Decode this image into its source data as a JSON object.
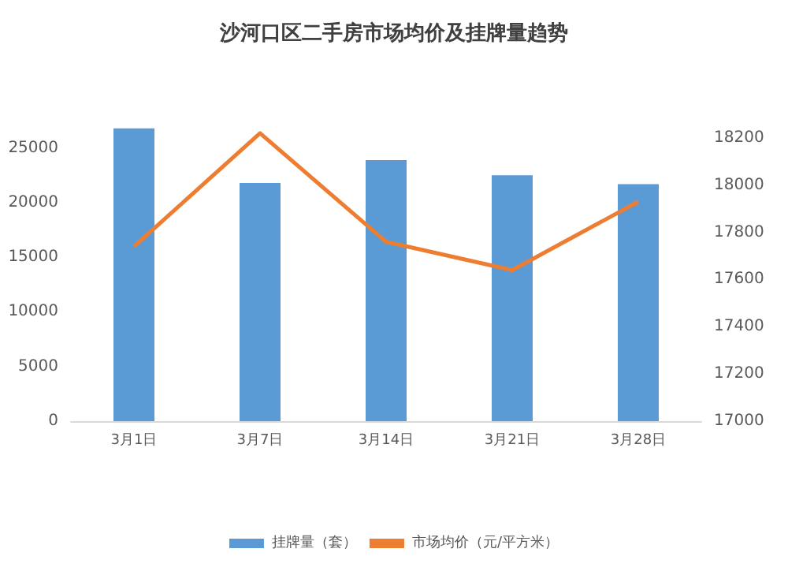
{
  "chart_data": {
    "type": "bar",
    "title": "沙河口区二手房市场均价及挂牌量趋势",
    "categories": [
      "3月1日",
      "3月7日",
      "3月14日",
      "3月21日",
      "3月28日"
    ],
    "series": [
      {
        "name": "挂牌量（套）",
        "color": "#5b9bd5",
        "values": [
          26800,
          21800,
          23900,
          22500,
          21700
        ]
      },
      {
        "name": "市场均价（元/平方米）",
        "type": "line",
        "axis": "y2",
        "color": "#ed7d31",
        "values": [
          17740,
          18220,
          17760,
          17640,
          17930
        ]
      }
    ],
    "ylim": [
      0,
      27000
    ],
    "yticks": [
      0,
      5000,
      10000,
      15000,
      20000,
      25000
    ],
    "y2lim": [
      17000,
      18250
    ],
    "y2ticks": [
      17000,
      17200,
      17400,
      17600,
      17800,
      18000,
      18200
    ],
    "grid": false,
    "legend": "bottom",
    "marker": "none",
    "line_style": "solid"
  }
}
